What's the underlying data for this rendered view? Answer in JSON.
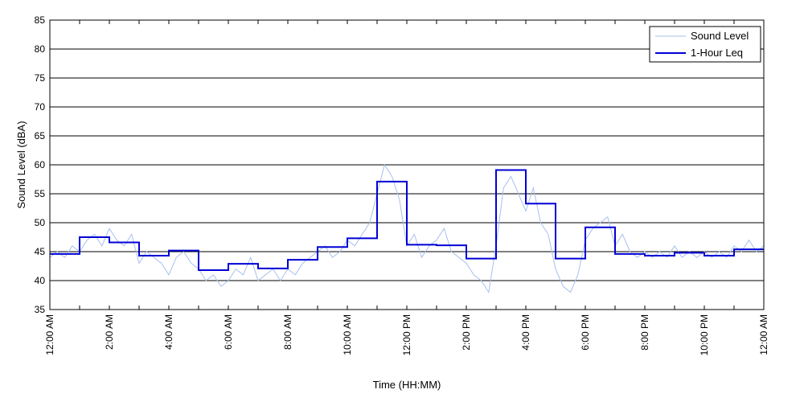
{
  "chart_data": {
    "type": "line",
    "title": "",
    "xlabel": "Time (HH:MM)",
    "ylabel": "Sound Level (dBA)",
    "xlim": [
      0,
      24
    ],
    "ylim": [
      35,
      85
    ],
    "yticks": [
      35,
      40,
      45,
      50,
      55,
      60,
      65,
      70,
      75,
      80,
      85
    ],
    "xticks": [
      0,
      1,
      2,
      3,
      4,
      5,
      6,
      7,
      8,
      9,
      10,
      11,
      12,
      13,
      14,
      15,
      16,
      17,
      18,
      19,
      20,
      21,
      22,
      23,
      24
    ],
    "xtick_labels": [
      {
        "hour": 0,
        "label": "12:00 AM"
      },
      {
        "hour": 2,
        "label": "2:00 AM"
      },
      {
        "hour": 4,
        "label": "4:00 AM"
      },
      {
        "hour": 6,
        "label": "6:00 AM"
      },
      {
        "hour": 8,
        "label": "8:00 AM"
      },
      {
        "hour": 10,
        "label": "10:00 AM"
      },
      {
        "hour": 12,
        "label": "12:00 PM"
      },
      {
        "hour": 14,
        "label": "2:00 PM"
      },
      {
        "hour": 16,
        "label": "4:00 PM"
      },
      {
        "hour": 18,
        "label": "6:00 PM"
      },
      {
        "hour": 20,
        "label": "8:00 PM"
      },
      {
        "hour": 22,
        "label": "10:00 PM"
      },
      {
        "hour": 24,
        "label": "12:00 AM"
      }
    ],
    "grid": "horizontal",
    "legend_position": "top-right",
    "series": [
      {
        "name": "Sound Level",
        "color": "#a8c0ee",
        "x": [
          0,
          0.25,
          0.5,
          0.75,
          1,
          1.25,
          1.5,
          1.75,
          2,
          2.25,
          2.5,
          2.75,
          3,
          3.25,
          3.5,
          3.75,
          4,
          4.25,
          4.5,
          4.75,
          5,
          5.25,
          5.5,
          5.75,
          6,
          6.25,
          6.5,
          6.75,
          7,
          7.25,
          7.5,
          7.75,
          8,
          8.25,
          8.5,
          8.75,
          9,
          9.25,
          9.5,
          9.75,
          10,
          10.25,
          10.5,
          10.75,
          11,
          11.25,
          11.5,
          11.75,
          12,
          12.25,
          12.5,
          12.75,
          13,
          13.25,
          13.5,
          13.75,
          14,
          14.25,
          14.5,
          14.75,
          15,
          15.25,
          15.5,
          15.75,
          16,
          16.25,
          16.5,
          16.75,
          17,
          17.25,
          17.5,
          17.75,
          18,
          18.25,
          18.5,
          18.75,
          19,
          19.25,
          19.5,
          19.75,
          20,
          20.25,
          20.5,
          20.75,
          21,
          21.25,
          21.5,
          21.75,
          22,
          22.25,
          22.5,
          22.75,
          23,
          23.25,
          23.5,
          23.75,
          24
        ],
        "values": [
          44,
          45,
          44,
          46,
          45,
          47,
          48,
          46,
          49,
          47,
          46,
          48,
          43,
          45,
          44,
          43,
          41,
          44,
          45,
          43,
          42,
          40,
          41,
          39,
          40,
          42,
          41,
          44,
          40,
          41,
          42,
          40,
          42,
          41,
          43,
          44,
          45,
          46,
          44,
          45,
          47,
          46,
          48,
          50,
          55,
          60,
          58,
          54,
          46,
          48,
          44,
          46,
          47,
          49,
          45,
          44,
          43,
          41,
          40,
          38,
          46,
          56,
          58,
          55,
          52,
          56,
          50,
          48,
          42,
          39,
          38,
          41,
          47,
          49,
          50,
          51,
          46,
          48,
          45,
          44,
          45,
          44,
          45,
          44,
          46,
          44,
          45,
          44,
          45,
          44,
          45,
          44,
          46,
          45,
          47,
          45,
          46
        ]
      },
      {
        "name": "1-Hour Leq",
        "color": "#0000d6",
        "step": true,
        "hourly_values": [
          44.6,
          47.5,
          46.6,
          44.3,
          45.2,
          41.8,
          42.9,
          42.1,
          43.6,
          45.8,
          47.3,
          57.1,
          46.2,
          46.1,
          43.8,
          59.1,
          53.3,
          43.8,
          49.2,
          44.6,
          44.3,
          44.8,
          44.3,
          45.4
        ]
      }
    ]
  }
}
